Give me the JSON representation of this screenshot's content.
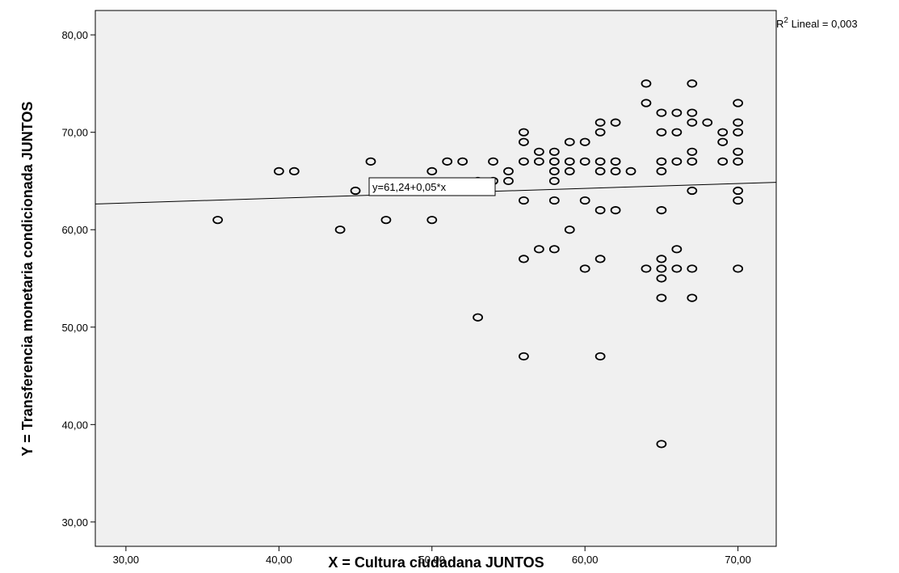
{
  "chart_data": {
    "type": "scatter",
    "title": "",
    "xlabel": "X = Cultura ciudadana JUNTOS",
    "ylabel": "Y = Transferencia monetaria condicionada JUNTOS",
    "xlim": [
      28,
      72.5
    ],
    "ylim": [
      27.5,
      82.5
    ],
    "x_ticks": [
      30,
      40,
      50,
      60,
      70
    ],
    "y_ticks": [
      30,
      40,
      50,
      60,
      70,
      80
    ],
    "x_tick_labels": [
      "30,00",
      "40,00",
      "50,00",
      "60,00",
      "70,00"
    ],
    "y_tick_labels": [
      "30,00",
      "40,00",
      "50,00",
      "60,00",
      "70,00",
      "80,00"
    ],
    "grid": false,
    "plot_background": "#f0f0f0",
    "marker_color": "#000000",
    "fit_line": {
      "intercept": 61.24,
      "slope": 0.05,
      "label": "y=61,24+0,05*x"
    },
    "r2_label": {
      "prefix": "R",
      "sup": "2",
      "suffix": " Lineal = 0,003"
    },
    "points": [
      [
        36,
        61
      ],
      [
        40,
        66
      ],
      [
        41,
        66
      ],
      [
        44,
        60
      ],
      [
        45,
        64
      ],
      [
        46,
        67
      ],
      [
        47,
        61
      ],
      [
        50,
        66
      ],
      [
        50,
        61
      ],
      [
        51,
        67
      ],
      [
        52,
        67
      ],
      [
        53,
        65
      ],
      [
        53,
        51
      ],
      [
        54,
        67
      ],
      [
        54,
        65
      ],
      [
        55,
        66
      ],
      [
        55,
        65
      ],
      [
        56,
        70
      ],
      [
        56,
        69
      ],
      [
        56,
        67
      ],
      [
        56,
        63
      ],
      [
        56,
        57
      ],
      [
        56,
        47
      ],
      [
        57,
        68
      ],
      [
        57,
        67
      ],
      [
        57,
        58
      ],
      [
        58,
        68
      ],
      [
        58,
        67
      ],
      [
        58,
        66
      ],
      [
        58,
        65
      ],
      [
        58,
        63
      ],
      [
        58,
        58
      ],
      [
        59,
        69
      ],
      [
        59,
        67
      ],
      [
        59,
        66
      ],
      [
        59,
        60
      ],
      [
        60,
        69
      ],
      [
        60,
        67
      ],
      [
        60,
        63
      ],
      [
        60,
        56
      ],
      [
        61,
        71
      ],
      [
        61,
        70
      ],
      [
        61,
        67
      ],
      [
        61,
        66
      ],
      [
        61,
        62
      ],
      [
        61,
        57
      ],
      [
        61,
        47
      ],
      [
        62,
        71
      ],
      [
        62,
        67
      ],
      [
        62,
        66
      ],
      [
        62,
        62
      ],
      [
        63,
        66
      ],
      [
        64,
        75
      ],
      [
        64,
        73
      ],
      [
        64,
        56
      ],
      [
        65,
        72
      ],
      [
        65,
        70
      ],
      [
        65,
        67
      ],
      [
        65,
        66
      ],
      [
        65,
        62
      ],
      [
        65,
        57
      ],
      [
        65,
        56
      ],
      [
        65,
        55
      ],
      [
        65,
        53
      ],
      [
        65,
        38
      ],
      [
        66,
        72
      ],
      [
        66,
        70
      ],
      [
        66,
        67
      ],
      [
        66,
        58
      ],
      [
        66,
        56
      ],
      [
        67,
        75
      ],
      [
        67,
        72
      ],
      [
        67,
        71
      ],
      [
        67,
        68
      ],
      [
        67,
        67
      ],
      [
        67,
        64
      ],
      [
        67,
        56
      ],
      [
        67,
        53
      ],
      [
        68,
        71
      ],
      [
        69,
        70
      ],
      [
        69,
        69
      ],
      [
        69,
        67
      ],
      [
        70,
        73
      ],
      [
        70,
        71
      ],
      [
        70,
        70
      ],
      [
        70,
        68
      ],
      [
        70,
        67
      ],
      [
        70,
        64
      ],
      [
        70,
        63
      ],
      [
        70,
        56
      ]
    ]
  }
}
